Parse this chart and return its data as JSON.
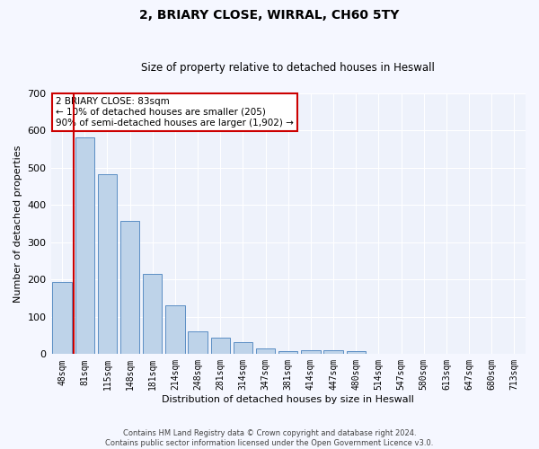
{
  "title": "2, BRIARY CLOSE, WIRRAL, CH60 5TY",
  "subtitle": "Size of property relative to detached houses in Heswall",
  "xlabel": "Distribution of detached houses by size in Heswall",
  "ylabel": "Number of detached properties",
  "categories": [
    "48sqm",
    "81sqm",
    "115sqm",
    "148sqm",
    "181sqm",
    "214sqm",
    "248sqm",
    "281sqm",
    "314sqm",
    "347sqm",
    "381sqm",
    "414sqm",
    "447sqm",
    "480sqm",
    "514sqm",
    "547sqm",
    "580sqm",
    "613sqm",
    "647sqm",
    "680sqm",
    "713sqm"
  ],
  "values": [
    193,
    583,
    483,
    358,
    215,
    130,
    62,
    44,
    33,
    16,
    8,
    10,
    11,
    7,
    0,
    0,
    0,
    0,
    0,
    0,
    0
  ],
  "bar_color": "#bed3e9",
  "bar_edge_color": "#5b8ec4",
  "background_color": "#eef2fb",
  "grid_color": "#ffffff",
  "ylim": [
    0,
    700
  ],
  "yticks": [
    0,
    100,
    200,
    300,
    400,
    500,
    600,
    700
  ],
  "annotation_label": "2 BRIARY CLOSE: 83sqm",
  "annotation_line1": "← 10% of detached houses are smaller (205)",
  "annotation_line2": "90% of semi-detached houses are larger (1,902) →",
  "box_facecolor": "#ffffff",
  "box_edgecolor": "#cc0000",
  "vline_color": "#cc0000",
  "vline_x": 1,
  "title_fontsize": 10,
  "subtitle_fontsize": 8.5,
  "ylabel_fontsize": 8,
  "xlabel_fontsize": 8,
  "tick_fontsize": 7,
  "annot_fontsize": 7.5,
  "footer1": "Contains HM Land Registry data © Crown copyright and database right 2024.",
  "footer2": "Contains public sector information licensed under the Open Government Licence v3.0.",
  "footer_fontsize": 6
}
